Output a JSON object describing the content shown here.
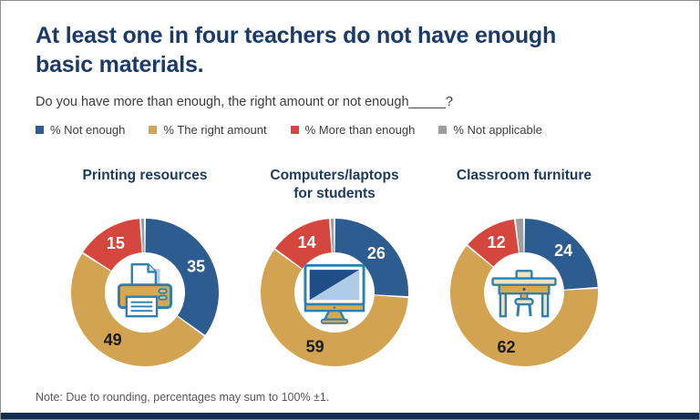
{
  "header": {
    "title": "At least one in four teachers do not have enough basic materials.",
    "question": "Do you have more than enough, the right amount or not enough_____?"
  },
  "footer": {
    "note": "Note: Due to rounding, percentages may sum to 100% ±1."
  },
  "colors": {
    "title_navy": "#1d3a66",
    "bottom_bar_navy": "#112e52",
    "value_label_light": "#ffffff",
    "value_label_dark": "#1a1a1a"
  },
  "chart_data": {
    "type": "pie",
    "subtype": "donut",
    "start": "12 o'clock, clockwise",
    "legend_position": "top",
    "legend": [
      {
        "key": "not_enough",
        "label": "% Not enough",
        "color": "#2d5c90"
      },
      {
        "key": "right_amount",
        "label": "% The right amount",
        "color": "#d2a351"
      },
      {
        "key": "more_than_enough",
        "label": "% More than enough",
        "color": "#d5463e"
      },
      {
        "key": "not_applicable",
        "label": "% Not applicable",
        "color": "#9e9e9e"
      }
    ],
    "charts": [
      {
        "title": "Printing resources",
        "icon": "printer-icon",
        "segments": [
          {
            "key": "not_enough",
            "value": 35,
            "label": "35"
          },
          {
            "key": "right_amount",
            "value": 49,
            "label": "49"
          },
          {
            "key": "more_than_enough",
            "value": 15,
            "label": "15"
          },
          {
            "key": "not_applicable",
            "value": 1,
            "label": ""
          }
        ]
      },
      {
        "title": "Computers/laptops for students",
        "icon": "computer-icon",
        "segments": [
          {
            "key": "not_enough",
            "value": 26,
            "label": "26"
          },
          {
            "key": "right_amount",
            "value": 59,
            "label": "59"
          },
          {
            "key": "more_than_enough",
            "value": 14,
            "label": "14"
          },
          {
            "key": "not_applicable",
            "value": 1,
            "label": ""
          }
        ]
      },
      {
        "title": "Classroom furniture",
        "icon": "desk-icon",
        "segments": [
          {
            "key": "not_enough",
            "value": 24,
            "label": "24"
          },
          {
            "key": "right_amount",
            "value": 62,
            "label": "62"
          },
          {
            "key": "more_than_enough",
            "value": 12,
            "label": "12"
          },
          {
            "key": "not_applicable",
            "value": 2,
            "label": ""
          }
        ]
      }
    ]
  }
}
